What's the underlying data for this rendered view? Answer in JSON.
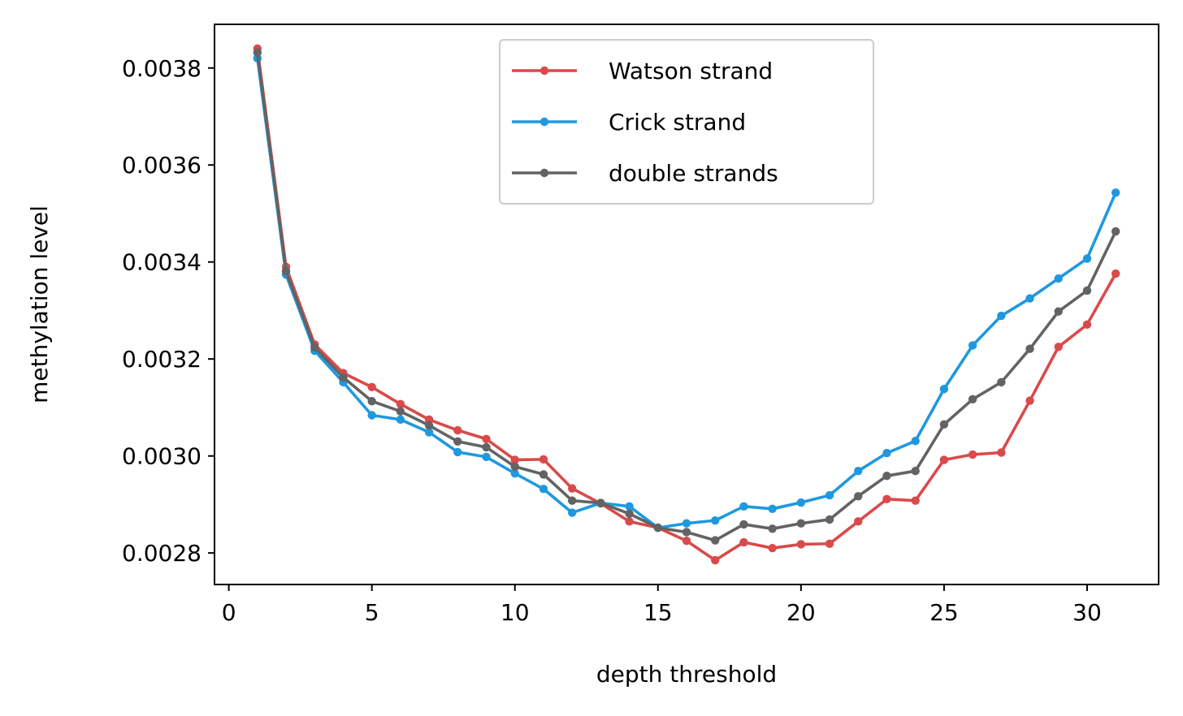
{
  "chart_data": {
    "type": "line",
    "title": "",
    "xlabel": "depth threshold",
    "ylabel": "methylation level",
    "xlim": [
      -0.5,
      32.5
    ],
    "ylim": [
      0.002735,
      0.00389
    ],
    "xticks": [
      0,
      5,
      10,
      15,
      20,
      25,
      30
    ],
    "xtick_labels": [
      "0",
      "5",
      "10",
      "15",
      "20",
      "25",
      "30"
    ],
    "yticks": [
      0.0028,
      0.003,
      0.0032,
      0.0034,
      0.0036,
      0.0038
    ],
    "ytick_labels": [
      "0.0028",
      "0.0030",
      "0.0032",
      "0.0034",
      "0.0036",
      "0.0038"
    ],
    "grid": false,
    "legend_position": "top-center",
    "x": [
      1,
      2,
      3,
      4,
      5,
      6,
      7,
      8,
      9,
      10,
      11,
      12,
      13,
      14,
      15,
      16,
      17,
      18,
      19,
      20,
      21,
      22,
      23,
      24,
      25,
      26,
      27,
      28,
      29,
      30,
      31
    ],
    "series": [
      {
        "name": "Watson strand",
        "color": "#d94a4a",
        "values": [
          0.00384,
          0.00339,
          0.00323,
          0.003171,
          0.003142,
          0.003107,
          0.003075,
          0.003053,
          0.003035,
          0.002992,
          0.002993,
          0.002933,
          0.002902,
          0.002865,
          0.002852,
          0.002825,
          0.002785,
          0.002822,
          0.00281,
          0.002818,
          0.002819,
          0.002865,
          0.002911,
          0.002908,
          0.002992,
          0.003003,
          0.003007,
          0.003114,
          0.003225,
          0.003271,
          0.003376
        ]
      },
      {
        "name": "Crick strand",
        "color": "#1f98df",
        "values": [
          0.00382,
          0.003374,
          0.003217,
          0.003152,
          0.003084,
          0.003075,
          0.003049,
          0.003008,
          0.002998,
          0.002964,
          0.002932,
          0.002883,
          0.002903,
          0.002896,
          0.002852,
          0.002861,
          0.002867,
          0.002896,
          0.002891,
          0.002904,
          0.002919,
          0.002969,
          0.003006,
          0.003031,
          0.003138,
          0.003228,
          0.003289,
          0.003325,
          0.003366,
          0.003407,
          0.003543
        ]
      },
      {
        "name": "double strands",
        "color": "#636363",
        "values": [
          0.003832,
          0.003381,
          0.003224,
          0.003162,
          0.003113,
          0.003092,
          0.003063,
          0.00303,
          0.003018,
          0.002978,
          0.002962,
          0.002908,
          0.002903,
          0.002881,
          0.002852,
          0.002843,
          0.002826,
          0.002859,
          0.00285,
          0.002861,
          0.002869,
          0.002917,
          0.002959,
          0.002969,
          0.003065,
          0.003117,
          0.003152,
          0.003221,
          0.003298,
          0.003341,
          0.003463
        ]
      }
    ]
  }
}
